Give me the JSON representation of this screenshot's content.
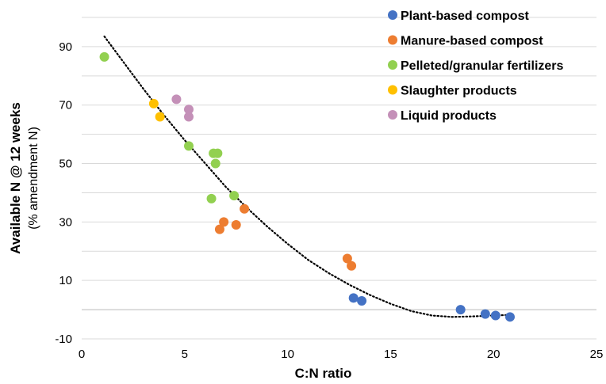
{
  "chart_data": {
    "type": "scatter",
    "xlabel": "C:N ratio",
    "ylabel": "Available N @ 12 weeks",
    "ylabel_sub": "(% amendment  N)",
    "xlim": [
      0,
      25
    ],
    "ylim": [
      -10,
      100
    ],
    "x_ticks": [
      "0",
      "5",
      "10",
      "15",
      "20",
      "25"
    ],
    "y_ticks": [
      "-10",
      "10",
      "30",
      "50",
      "70",
      "90"
    ],
    "grid": "horizontal",
    "legend_position": "top-right",
    "series": [
      {
        "name": "Plant-based compost",
        "color": "#4472C4",
        "points": [
          [
            13.2,
            4
          ],
          [
            13.6,
            3
          ],
          [
            18.4,
            0
          ],
          [
            19.6,
            -1.5
          ],
          [
            20.1,
            -2
          ],
          [
            20.8,
            -2.5
          ]
        ]
      },
      {
        "name": "Manure-based compost",
        "color": "#ED7D31",
        "points": [
          [
            6.7,
            27.5
          ],
          [
            6.9,
            30
          ],
          [
            7.5,
            29
          ],
          [
            7.9,
            34.5
          ],
          [
            12.9,
            17.5
          ],
          [
            13.1,
            15
          ]
        ]
      },
      {
        "name": "Pelleted/granular fertilizers",
        "color": "#92D050",
        "points": [
          [
            1.1,
            86.5
          ],
          [
            5.2,
            56
          ],
          [
            6.3,
            38
          ],
          [
            6.4,
            53.5
          ],
          [
            6.6,
            53.5
          ],
          [
            6.5,
            50
          ],
          [
            7.4,
            39
          ]
        ]
      },
      {
        "name": "Slaughter products",
        "color": "#FFC000",
        "points": [
          [
            3.5,
            70.5
          ],
          [
            3.8,
            66
          ]
        ]
      },
      {
        "name": "Liquid products",
        "color": "#C490B8",
        "points": [
          [
            4.6,
            72
          ],
          [
            5.2,
            68.5
          ],
          [
            5.2,
            66
          ]
        ]
      }
    ],
    "trendline": {
      "style": "dotted",
      "color": "#000000",
      "points": [
        [
          1.1,
          93.5
        ],
        [
          2,
          85
        ],
        [
          3,
          75.5
        ],
        [
          4,
          66.5
        ],
        [
          5,
          58
        ],
        [
          6,
          50
        ],
        [
          7,
          42
        ],
        [
          8,
          35
        ],
        [
          9,
          28.5
        ],
        [
          10,
          22.5
        ],
        [
          11,
          17
        ],
        [
          12,
          12.5
        ],
        [
          13,
          8.5
        ],
        [
          14,
          5
        ],
        [
          15,
          2
        ],
        [
          16,
          -0.5
        ],
        [
          17,
          -2
        ],
        [
          18,
          -2.5
        ],
        [
          19,
          -2.3
        ],
        [
          20,
          -2
        ],
        [
          20.8,
          -1.8
        ]
      ]
    }
  }
}
